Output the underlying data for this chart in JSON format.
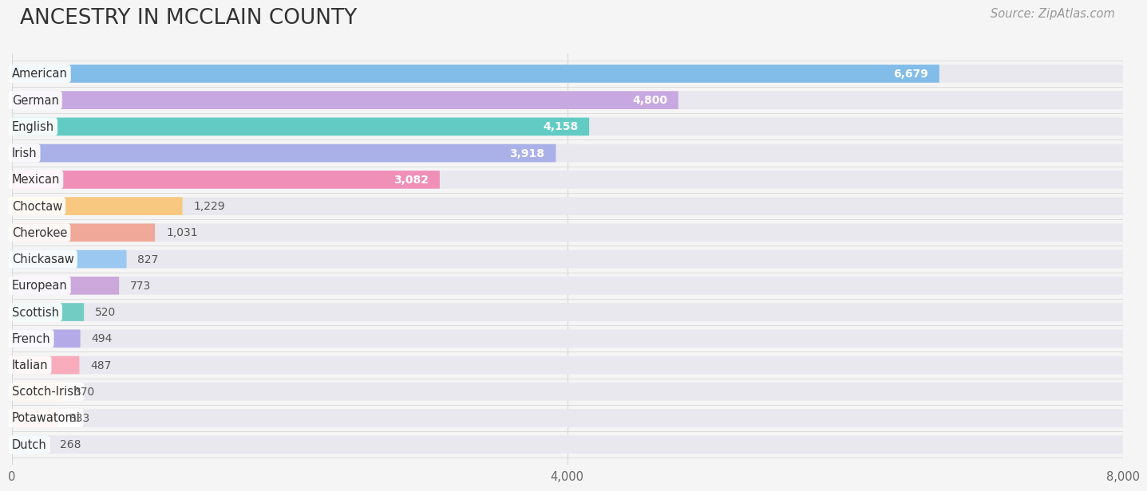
{
  "title": "ANCESTRY IN MCCLAIN COUNTY",
  "source": "Source: ZipAtlas.com",
  "categories": [
    "American",
    "German",
    "English",
    "Irish",
    "Mexican",
    "Choctaw",
    "Cherokee",
    "Chickasaw",
    "European",
    "Scottish",
    "French",
    "Italian",
    "Scotch-Irish",
    "Potawatomi",
    "Dutch"
  ],
  "values": [
    6679,
    4800,
    4158,
    3918,
    3082,
    1229,
    1031,
    827,
    773,
    520,
    494,
    487,
    370,
    333,
    268
  ],
  "bar_colors": [
    "#82bce8",
    "#c8a8e0",
    "#62ccc4",
    "#aab0e8",
    "#f090b8",
    "#f8c880",
    "#f0a898",
    "#9ac8f0",
    "#cca8dc",
    "#72ccc4",
    "#b4aae8",
    "#f8acbc",
    "#f8c888",
    "#f0a898",
    "#94c4f0"
  ],
  "icon_colors": [
    "#4488cc",
    "#9966bb",
    "#22aaaa",
    "#6677cc",
    "#ee4488",
    "#ddaa33",
    "#cc8866",
    "#5599cc",
    "#9966cc",
    "#33bbaa",
    "#7766cc",
    "#ee6699",
    "#ddaa44",
    "#cc8877",
    "#5588cc"
  ],
  "bg_bar_color": "#e8e8ee",
  "xlim_max": 8000,
  "xticks": [
    0,
    4000,
    8000
  ],
  "background_color": "#f5f5f5",
  "grid_color": "#d8d8d8",
  "title_fontsize": 19,
  "label_fontsize": 10.5,
  "value_fontsize": 10,
  "source_fontsize": 10.5,
  "title_color": "#333333",
  "label_color": "#333333",
  "value_color_inside": "#ffffff",
  "value_color_outside": "#555555",
  "source_color": "#999999"
}
